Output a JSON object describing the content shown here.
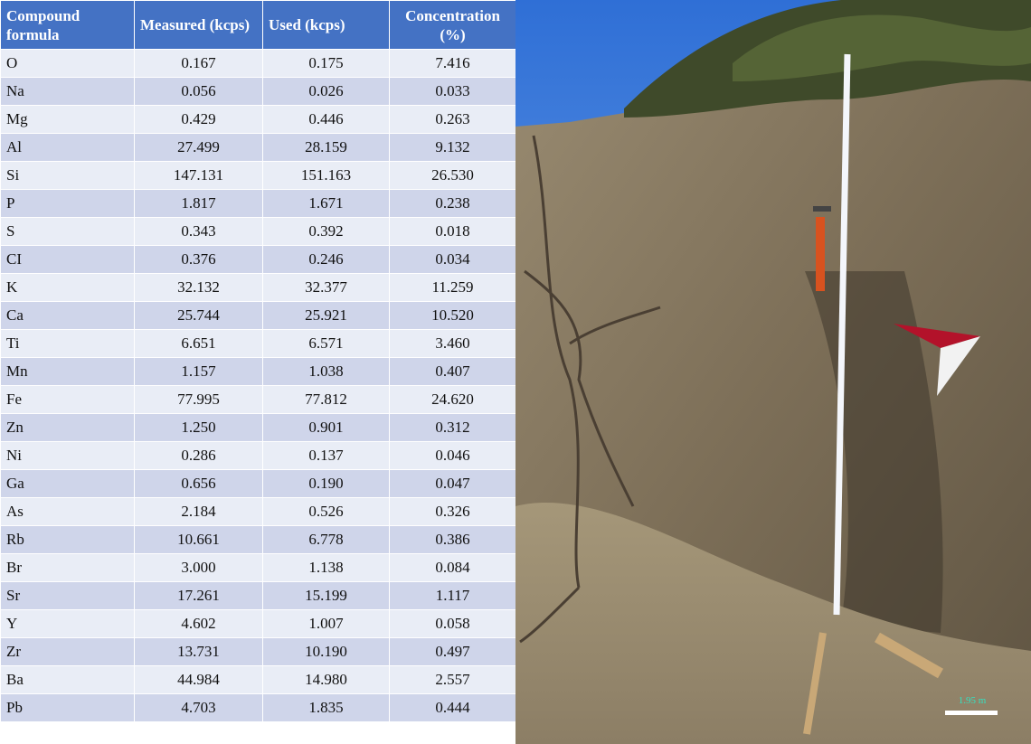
{
  "table": {
    "header": [
      "Compound formula",
      "Measured (kcps)",
      "Used (kcps)",
      "Concentration (%)"
    ],
    "rows": [
      [
        "O",
        "0.167",
        "0.175",
        "7.416"
      ],
      [
        "Na",
        "0.056",
        "0.026",
        "0.033"
      ],
      [
        "Mg",
        "0.429",
        "0.446",
        "0.263"
      ],
      [
        "Al",
        "27.499",
        "28.159",
        "9.132"
      ],
      [
        "Si",
        "147.131",
        "151.163",
        "26.530"
      ],
      [
        "P",
        "1.817",
        "1.671",
        "0.238"
      ],
      [
        "S",
        "0.343",
        "0.392",
        "0.018"
      ],
      [
        "CI",
        "0.376",
        "0.246",
        "0.034"
      ],
      [
        "K",
        "32.132",
        "32.377",
        "11.259"
      ],
      [
        "Ca",
        "25.744",
        "25.921",
        "10.520"
      ],
      [
        "Ti",
        "6.651",
        "6.571",
        "3.460"
      ],
      [
        "Mn",
        "1.157",
        "1.038",
        "0.407"
      ],
      [
        "Fe",
        "77.995",
        "77.812",
        "24.620"
      ],
      [
        "Zn",
        "1.250",
        "0.901",
        "0.312"
      ],
      [
        "Ni",
        "0.286",
        "0.137",
        "0.046"
      ],
      [
        "Ga",
        "0.656",
        "0.190",
        "0.047"
      ],
      [
        "As",
        "2.184",
        "0.526",
        "0.326"
      ],
      [
        "Rb",
        "10.661",
        "6.778",
        "0.386"
      ],
      [
        "Br",
        "3.000",
        "1.138",
        "0.084"
      ],
      [
        "Sr",
        "17.261",
        "15.199",
        "1.117"
      ],
      [
        "Y",
        "4.602",
        "1.007",
        "0.058"
      ],
      [
        "Zr",
        "13.731",
        "10.190",
        "0.497"
      ],
      [
        "Ba",
        "44.984",
        "14.980",
        "2.557"
      ],
      [
        "Pb",
        "4.703",
        "1.835",
        "0.444"
      ]
    ]
  },
  "photo": {
    "scale_label": "1.95 m"
  }
}
